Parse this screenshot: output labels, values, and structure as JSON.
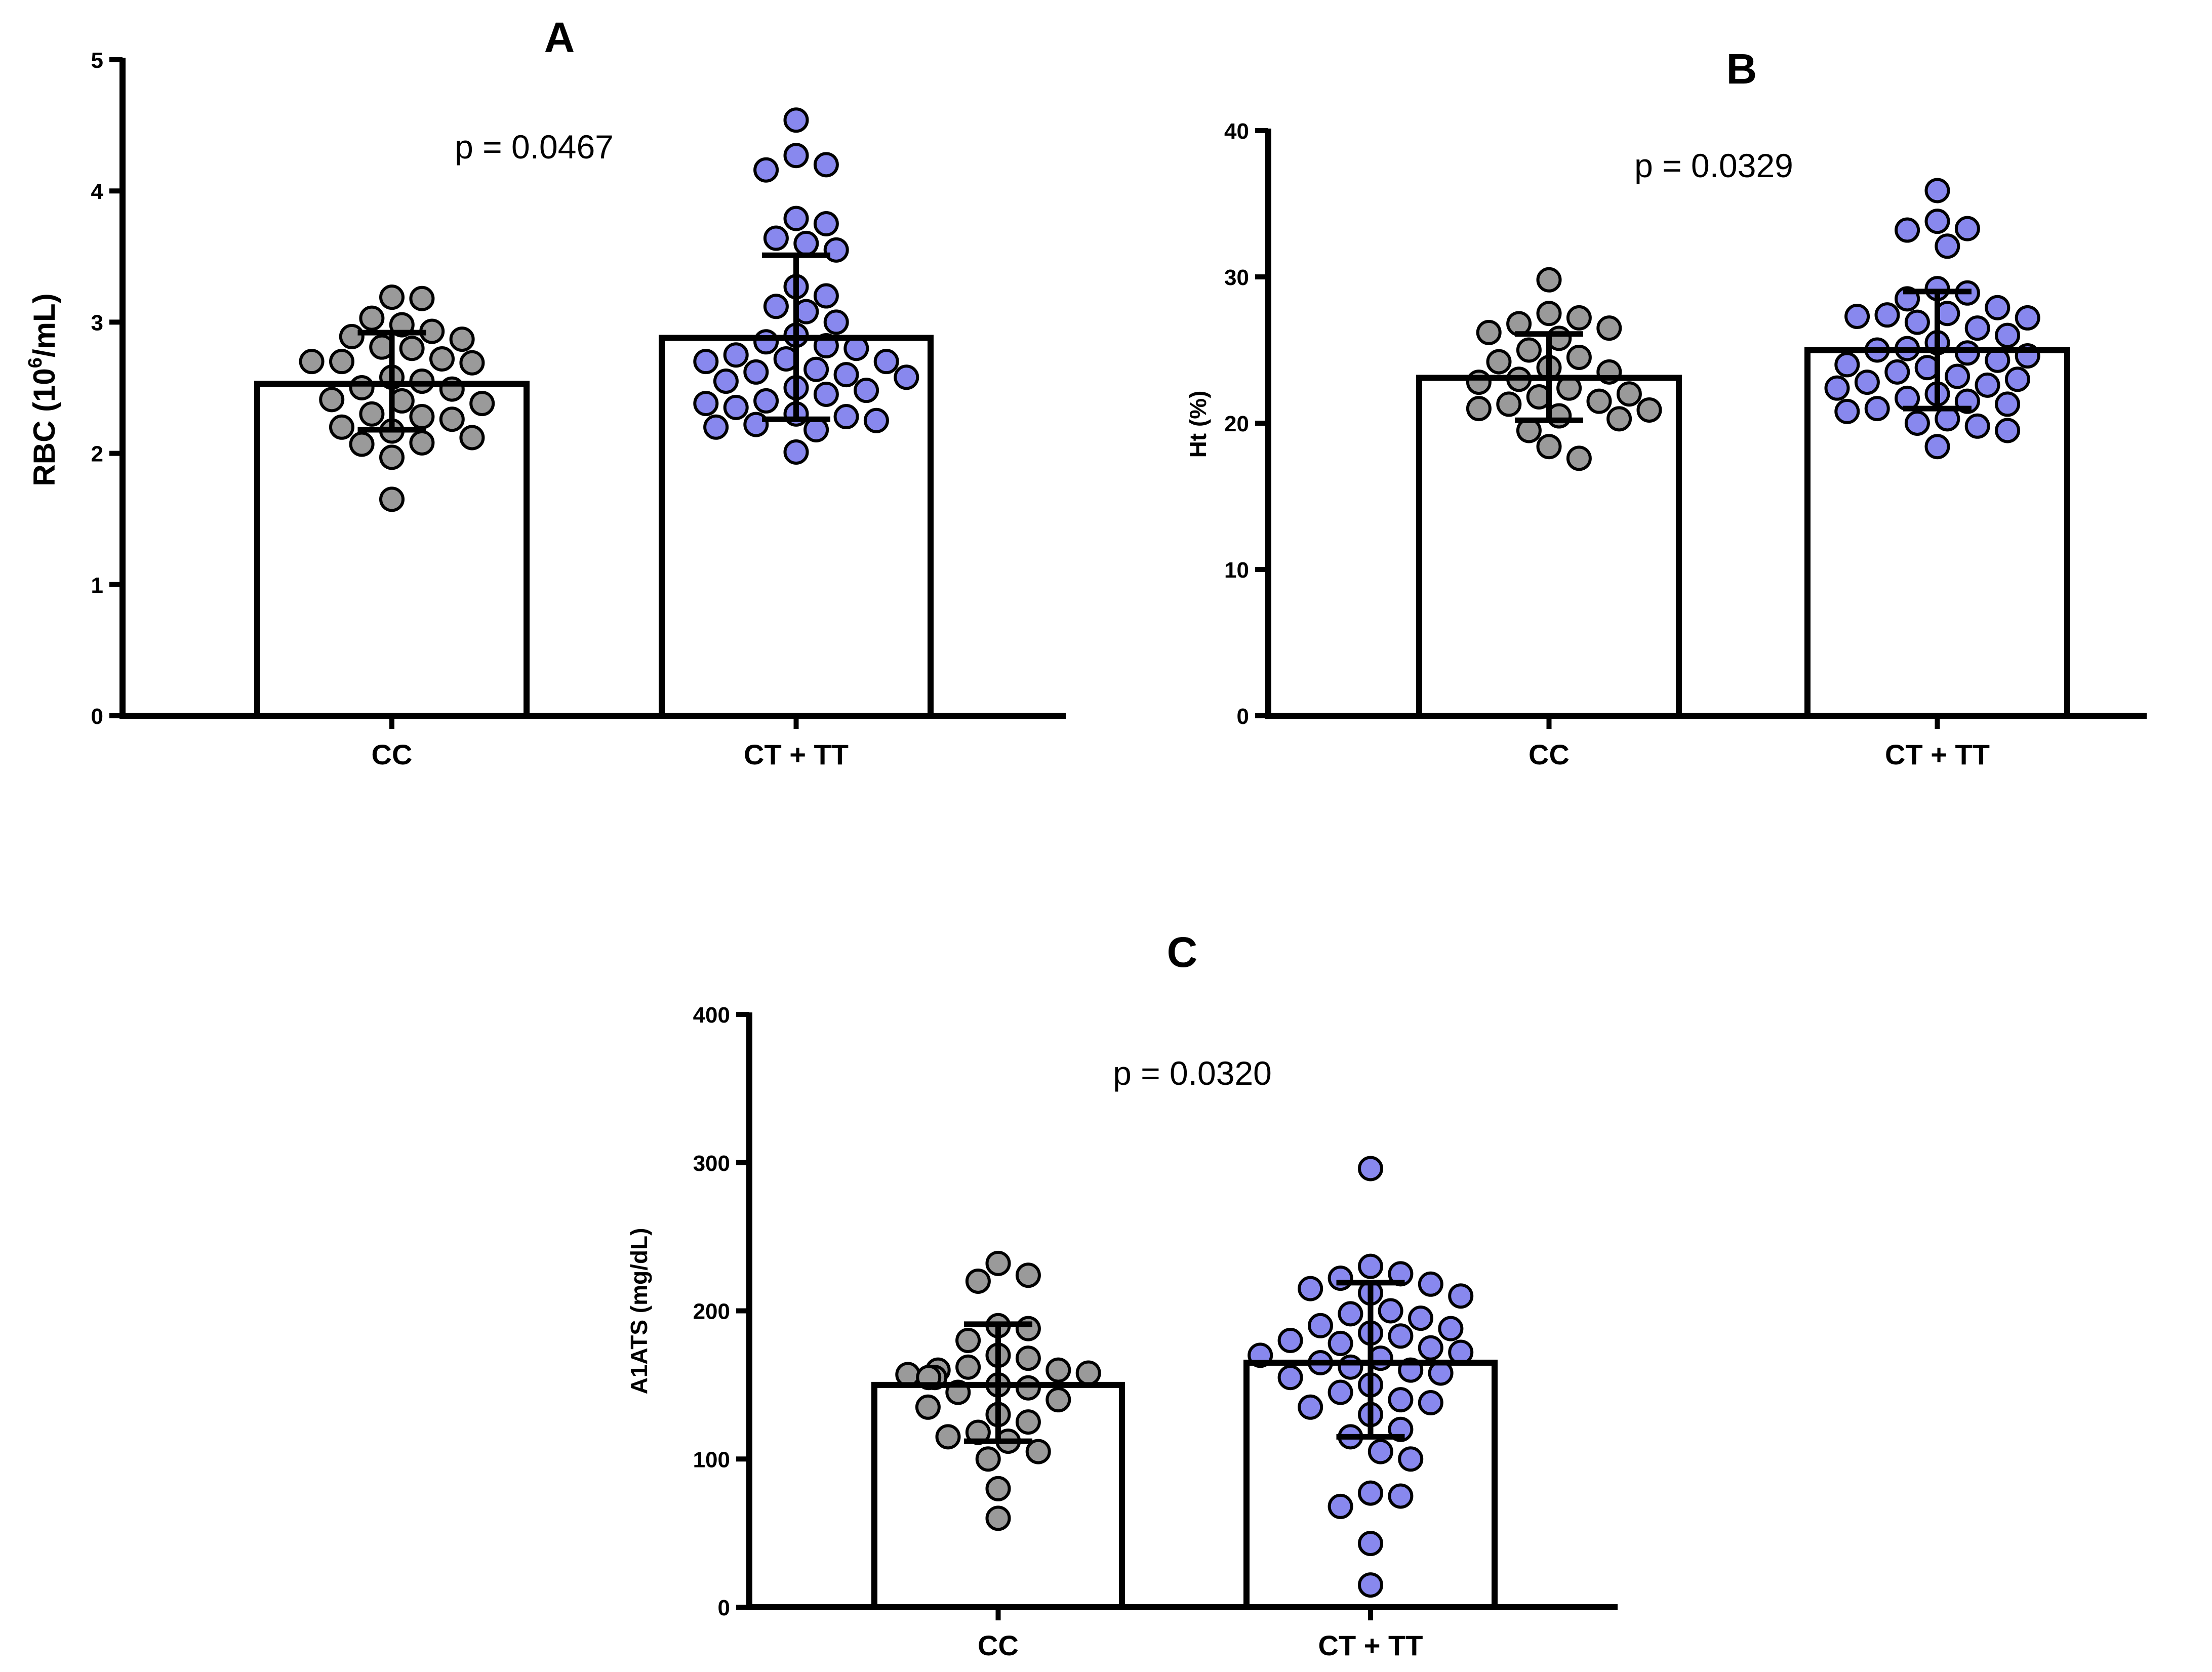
{
  "colors": {
    "group1": "#9a9a9a",
    "group2": "#8888ee",
    "bar_fill": "#ffffff",
    "axis": "#000000"
  },
  "chart_data": [
    {
      "id": "A",
      "type": "bar",
      "title": "A",
      "ylabel": "RBC  (10",
      "ylabel_sup": "6",
      "ylabel_tail": "/mL)",
      "categories": [
        "CC",
        "CT + TT"
      ],
      "values": [
        2.53,
        2.88
      ],
      "error": [
        [
          2.18,
          2.92
        ],
        [
          2.26,
          3.51
        ]
      ],
      "ylim": [
        0,
        5
      ],
      "yticks": [
        0,
        1,
        2,
        3,
        4,
        5
      ],
      "ytick_labels": [
        "0",
        "1",
        "2",
        "3",
        "4",
        "5"
      ],
      "annotation": "p = 0.0467",
      "points": [
        [
          3.18,
          3.19,
          2.93,
          2.98,
          3.03,
          2.87,
          2.89,
          2.8,
          2.81,
          2.7,
          2.72,
          2.69,
          2.7,
          2.58,
          2.55,
          2.5,
          2.49,
          2.41,
          2.4,
          2.38,
          2.3,
          2.26,
          2.28,
          2.2,
          2.17,
          2.12,
          2.08,
          2.07,
          1.97,
          1.65
        ],
        [
          4.54,
          4.27,
          4.2,
          4.16,
          3.79,
          3.75,
          3.64,
          3.6,
          3.55,
          3.27,
          3.2,
          3.12,
          3.08,
          3.0,
          2.9,
          2.85,
          2.82,
          2.8,
          2.75,
          2.72,
          2.7,
          2.7,
          2.64,
          2.62,
          2.6,
          2.58,
          2.55,
          2.5,
          2.48,
          2.45,
          2.4,
          2.38,
          2.35,
          2.3,
          2.28,
          2.25,
          2.22,
          2.2,
          2.18,
          2.01
        ]
      ]
    },
    {
      "id": "B",
      "type": "bar",
      "title": "B",
      "ylabel": "Ht (%)",
      "categories": [
        "CC",
        "CT + TT"
      ],
      "values": [
        23.1,
        25.0
      ],
      "error": [
        [
          20.2,
          26.1
        ],
        [
          21.0,
          29.0
        ]
      ],
      "ylim": [
        0,
        40
      ],
      "yticks": [
        0,
        10,
        20,
        30,
        40
      ],
      "ytick_labels": [
        "0",
        "10",
        "20",
        "30",
        "40"
      ],
      "annotation": "p = 0.0329",
      "points": [
        [
          29.8,
          27.5,
          27.2,
          26.8,
          26.5,
          26.2,
          25.8,
          25.0,
          24.5,
          24.2,
          23.8,
          23.5,
          23.0,
          22.8,
          22.4,
          22.0,
          21.8,
          21.5,
          21.3,
          21.0,
          20.9,
          20.5,
          20.3,
          19.5,
          18.4,
          17.6
        ],
        [
          35.9,
          33.8,
          33.3,
          33.2,
          32.1,
          29.2,
          28.9,
          28.5,
          27.9,
          27.5,
          27.4,
          27.3,
          27.2,
          26.9,
          26.5,
          26.0,
          25.5,
          25.1,
          25.0,
          24.8,
          24.6,
          24.3,
          24.0,
          23.8,
          23.5,
          23.2,
          23.0,
          22.8,
          22.6,
          22.4,
          22.0,
          21.7,
          21.5,
          21.3,
          21.0,
          20.8,
          20.3,
          20.0,
          19.8,
          19.5,
          18.4
        ]
      ]
    },
    {
      "id": "C",
      "type": "bar",
      "title": "C",
      "ylabel": "A1ATS (mg/dL)",
      "categories": [
        "CC",
        "CT + TT"
      ],
      "values": [
        150,
        165
      ],
      "error": [
        [
          112,
          191
        ],
        [
          115,
          219
        ]
      ],
      "ylim": [
        0,
        400
      ],
      "yticks": [
        0,
        100,
        200,
        300,
        400
      ],
      "ytick_labels": [
        "0",
        "100",
        "200",
        "300",
        "400"
      ],
      "annotation": "p = 0.0320",
      "points": [
        [
          232,
          224,
          220,
          190,
          188,
          180,
          170,
          168,
          162,
          160,
          160,
          158,
          157,
          155,
          155,
          150,
          148,
          145,
          140,
          135,
          130,
          125,
          118,
          115,
          112,
          105,
          100,
          80,
          60
        ],
        [
          296,
          230,
          225,
          222,
          218,
          215,
          212,
          210,
          200,
          198,
          195,
          190,
          188,
          185,
          183,
          180,
          178,
          175,
          172,
          170,
          168,
          165,
          162,
          160,
          158,
          155,
          150,
          145,
          140,
          138,
          135,
          130,
          120,
          115,
          105,
          100,
          77,
          75,
          68,
          43,
          15
        ]
      ]
    }
  ]
}
